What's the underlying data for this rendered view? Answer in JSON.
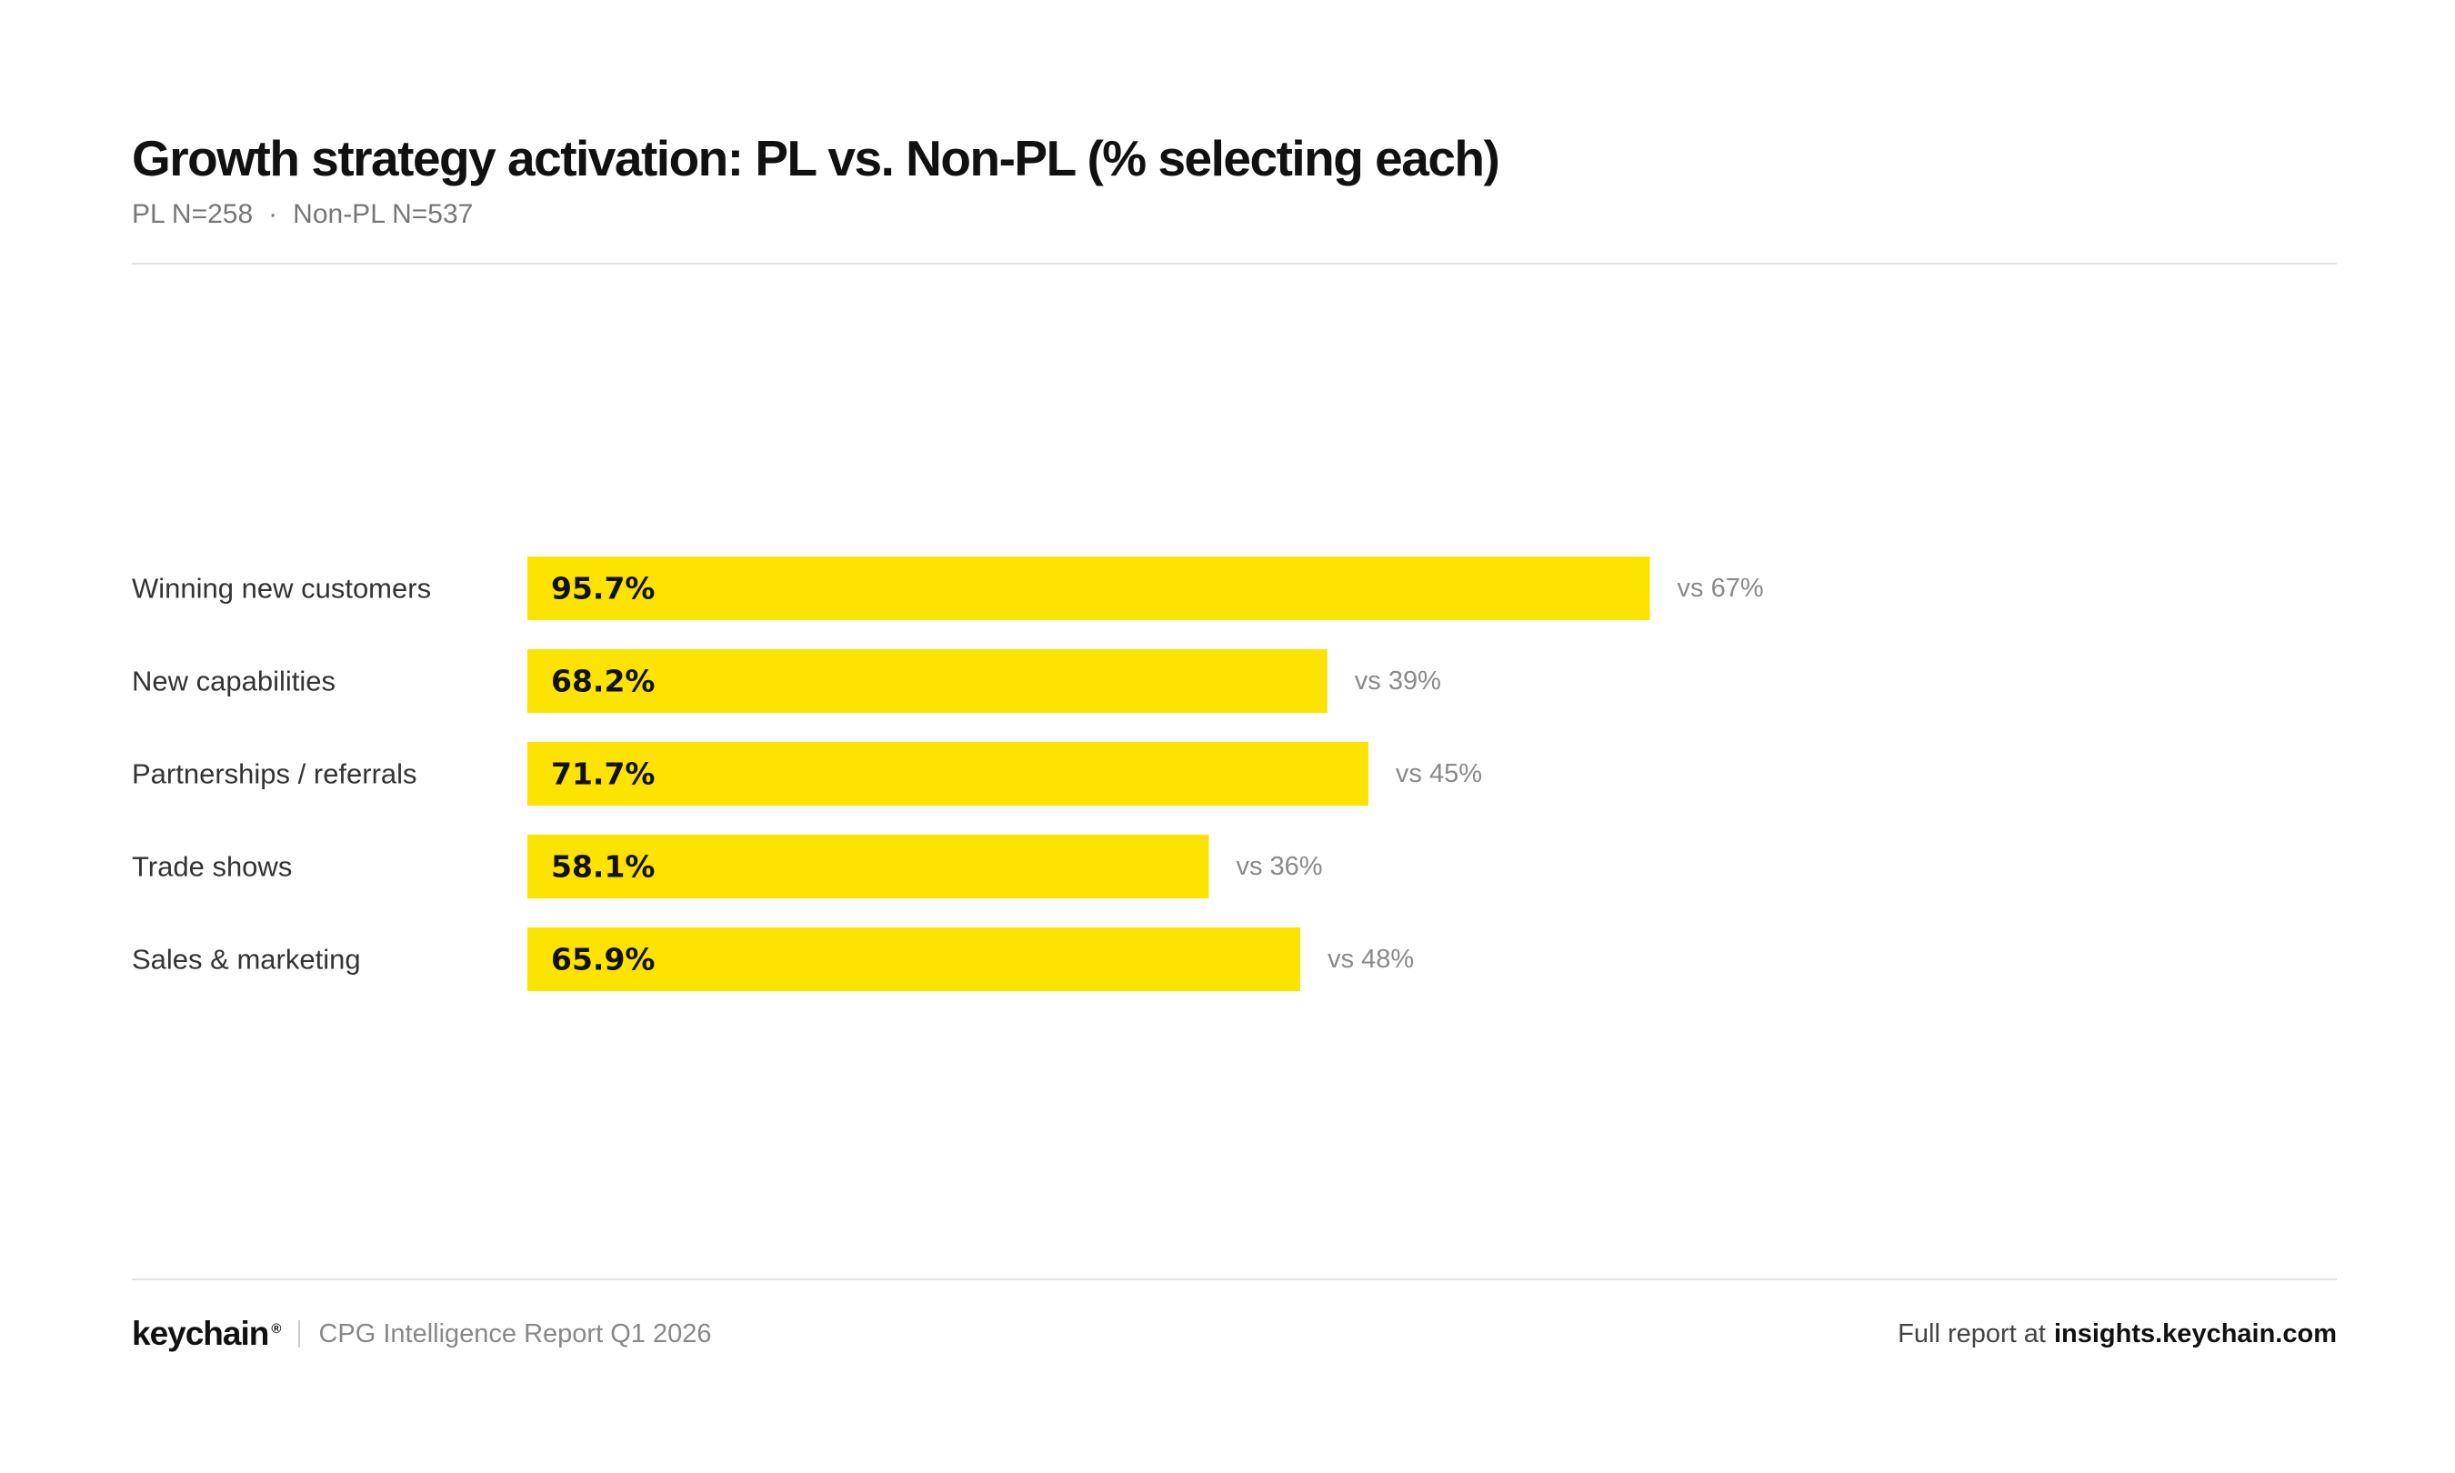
{
  "header": {
    "title": "Growth strategy activation: PL vs. Non-PL (% selecting each)",
    "pl_n": "PL N=258",
    "sep": "·",
    "nonpl_n": "Non-PL N=537"
  },
  "chart_data": {
    "type": "bar",
    "orientation": "horizontal",
    "categories": [
      "Winning new customers",
      "New capabilities",
      "Partnerships / referrals",
      "Trade shows",
      "Sales & marketing"
    ],
    "series": [
      {
        "values": [
          95.7,
          68.2,
          71.7,
          58.1,
          65.9
        ]
      }
    ],
    "bar_labels": [
      "95.7%",
      "68.2%",
      "71.7%",
      "58.1%",
      "65.9%"
    ],
    "comparison_values": [
      67,
      39,
      45,
      36,
      48
    ],
    "comparison_labels": [
      "vs 67%",
      "vs 39%",
      "vs 45%",
      "vs 36%",
      "vs 48%"
    ],
    "xlim": [
      0,
      100
    ],
    "grid": false,
    "bar_color": "#FDE300",
    "label_color": "#333333",
    "comparison_color": "#8a8a8a"
  },
  "footer": {
    "logo": "keychain",
    "registered": "®",
    "divider": "|",
    "report_name": "CPG Intelligence Report Q1 2026",
    "link_prefix": "Full report at",
    "link": "insights.keychain.com"
  }
}
